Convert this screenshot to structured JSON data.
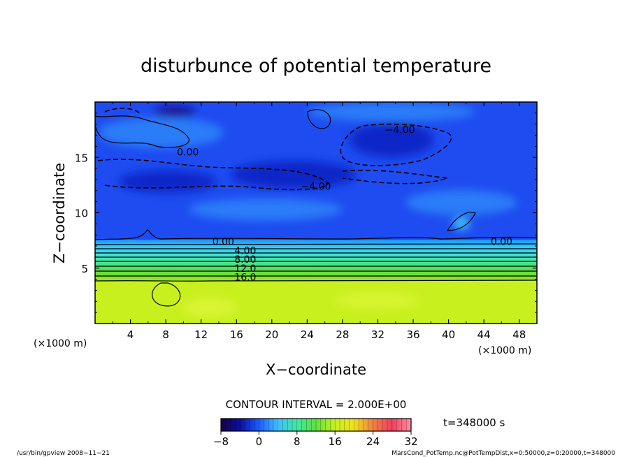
{
  "chart_data": {
    "type": "heatmap",
    "title": "disturbunce of potential temperature",
    "xlabel": "X−coordinate",
    "ylabel": "Z−coordinate",
    "x_unit_left": "(×1000 m)",
    "x_unit_right": "(×1000 m)",
    "xlim": [
      0,
      50
    ],
    "ylim": [
      0,
      20
    ],
    "x_ticks": [
      4,
      8,
      12,
      16,
      20,
      24,
      28,
      32,
      36,
      40,
      44,
      48
    ],
    "y_ticks": [
      5,
      10,
      15
    ],
    "contour_labels": [
      {
        "text": "0.00",
        "x": 10.5,
        "z": 15.5
      },
      {
        "text": "−4.00",
        "x": 34.5,
        "z": 17.5
      },
      {
        "text": "−4.00",
        "x": 25,
        "z": 12.4
      },
      {
        "text": "0.00",
        "x": 14.5,
        "z": 7.4
      },
      {
        "text": "0.00",
        "x": 46,
        "z": 7.4
      },
      {
        "text": "4.00",
        "x": 17,
        "z": 6.6
      },
      {
        "text": "8.00",
        "x": 17,
        "z": 5.8
      },
      {
        "text": "12.0",
        "x": 17,
        "z": 5.0
      },
      {
        "text": "16.0",
        "x": 17,
        "z": 4.2
      }
    ],
    "contour_interval": "CONTOUR INTERVAL = 2.000E+00",
    "time_label": "t=348000 s",
    "colorbar": {
      "ticks": [
        "−8",
        "0",
        "8",
        "16",
        "24",
        "32"
      ],
      "min": -8,
      "max": 32,
      "colormap": [
        "#1a0040",
        "#0a10a0",
        "#1e5cff",
        "#40c0ff",
        "#40e8a0",
        "#60e040",
        "#c8f020",
        "#f0e020",
        "#f08040",
        "#f04060",
        "#ff90a0"
      ]
    },
    "field_colors": {
      "upper": "#1e4cf0",
      "upper_light": "#2a7cf8",
      "upper_dark": "#0a28c8",
      "band": [
        "#1e90ff",
        "#30c8ff",
        "#40e0e0",
        "#40e8a0",
        "#50e060",
        "#70e030",
        "#a0e820"
      ],
      "lower": "#c8f01e"
    }
  },
  "footer": {
    "left": "/usr/bin/gpview   2008−11−21",
    "right": "MarsCond_PotTemp.nc@PotTempDist,x=0:50000,z=0:20000,t=348000"
  }
}
